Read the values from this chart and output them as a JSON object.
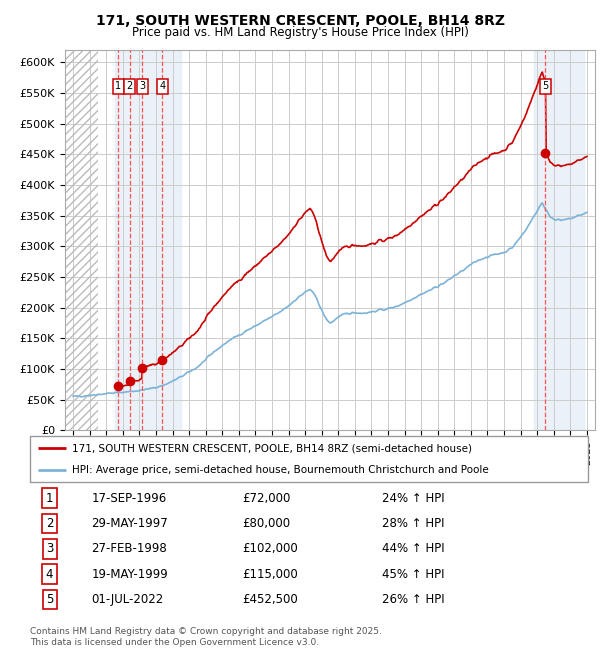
{
  "title": "171, SOUTH WESTERN CRESCENT, POOLE, BH14 8RZ",
  "subtitle": "Price paid vs. HM Land Registry's House Price Index (HPI)",
  "legend_line1": "171, SOUTH WESTERN CRESCENT, POOLE, BH14 8RZ (semi-detached house)",
  "legend_line2": "HPI: Average price, semi-detached house, Bournemouth Christchurch and Poole",
  "footer": "Contains HM Land Registry data © Crown copyright and database right 2025.\nThis data is licensed under the Open Government Licence v3.0.",
  "hpi_color": "#7EB3D8",
  "price_color": "#CC0000",
  "hatch_color": "#CCCCCC",
  "grid_color": "#CCCCCC",
  "dashed_line_color": "#FF5555",
  "shade_color": "#DDEEFF",
  "sale_dates_x": [
    1996.72,
    1997.41,
    1998.16,
    1999.38,
    2022.5
  ],
  "sale_prices_y": [
    72000,
    80000,
    102000,
    115000,
    452500
  ],
  "sale_labels": [
    "1",
    "2",
    "3",
    "4",
    "5"
  ],
  "sale_table": [
    [
      "1",
      "17-SEP-1996",
      "£72,000",
      "24% ↑ HPI"
    ],
    [
      "2",
      "29-MAY-1997",
      "£80,000",
      "28% ↑ HPI"
    ],
    [
      "3",
      "27-FEB-1998",
      "£102,000",
      "44% ↑ HPI"
    ],
    [
      "4",
      "19-MAY-1999",
      "£115,000",
      "45% ↑ HPI"
    ],
    [
      "5",
      "01-JUL-2022",
      "£452,500",
      "26% ↑ HPI"
    ]
  ],
  "ylim": [
    0,
    620000
  ],
  "xlim_start": 1993.5,
  "xlim_end": 2025.5,
  "hatch_end_year": 1995.5,
  "yticks": [
    0,
    50000,
    100000,
    150000,
    200000,
    250000,
    300000,
    350000,
    400000,
    450000,
    500000,
    550000,
    600000
  ],
  "ytick_labels": [
    "£0",
    "£50K",
    "£100K",
    "£150K",
    "£200K",
    "£250K",
    "£300K",
    "£350K",
    "£400K",
    "£450K",
    "£500K",
    "£550K",
    "£600K"
  ]
}
